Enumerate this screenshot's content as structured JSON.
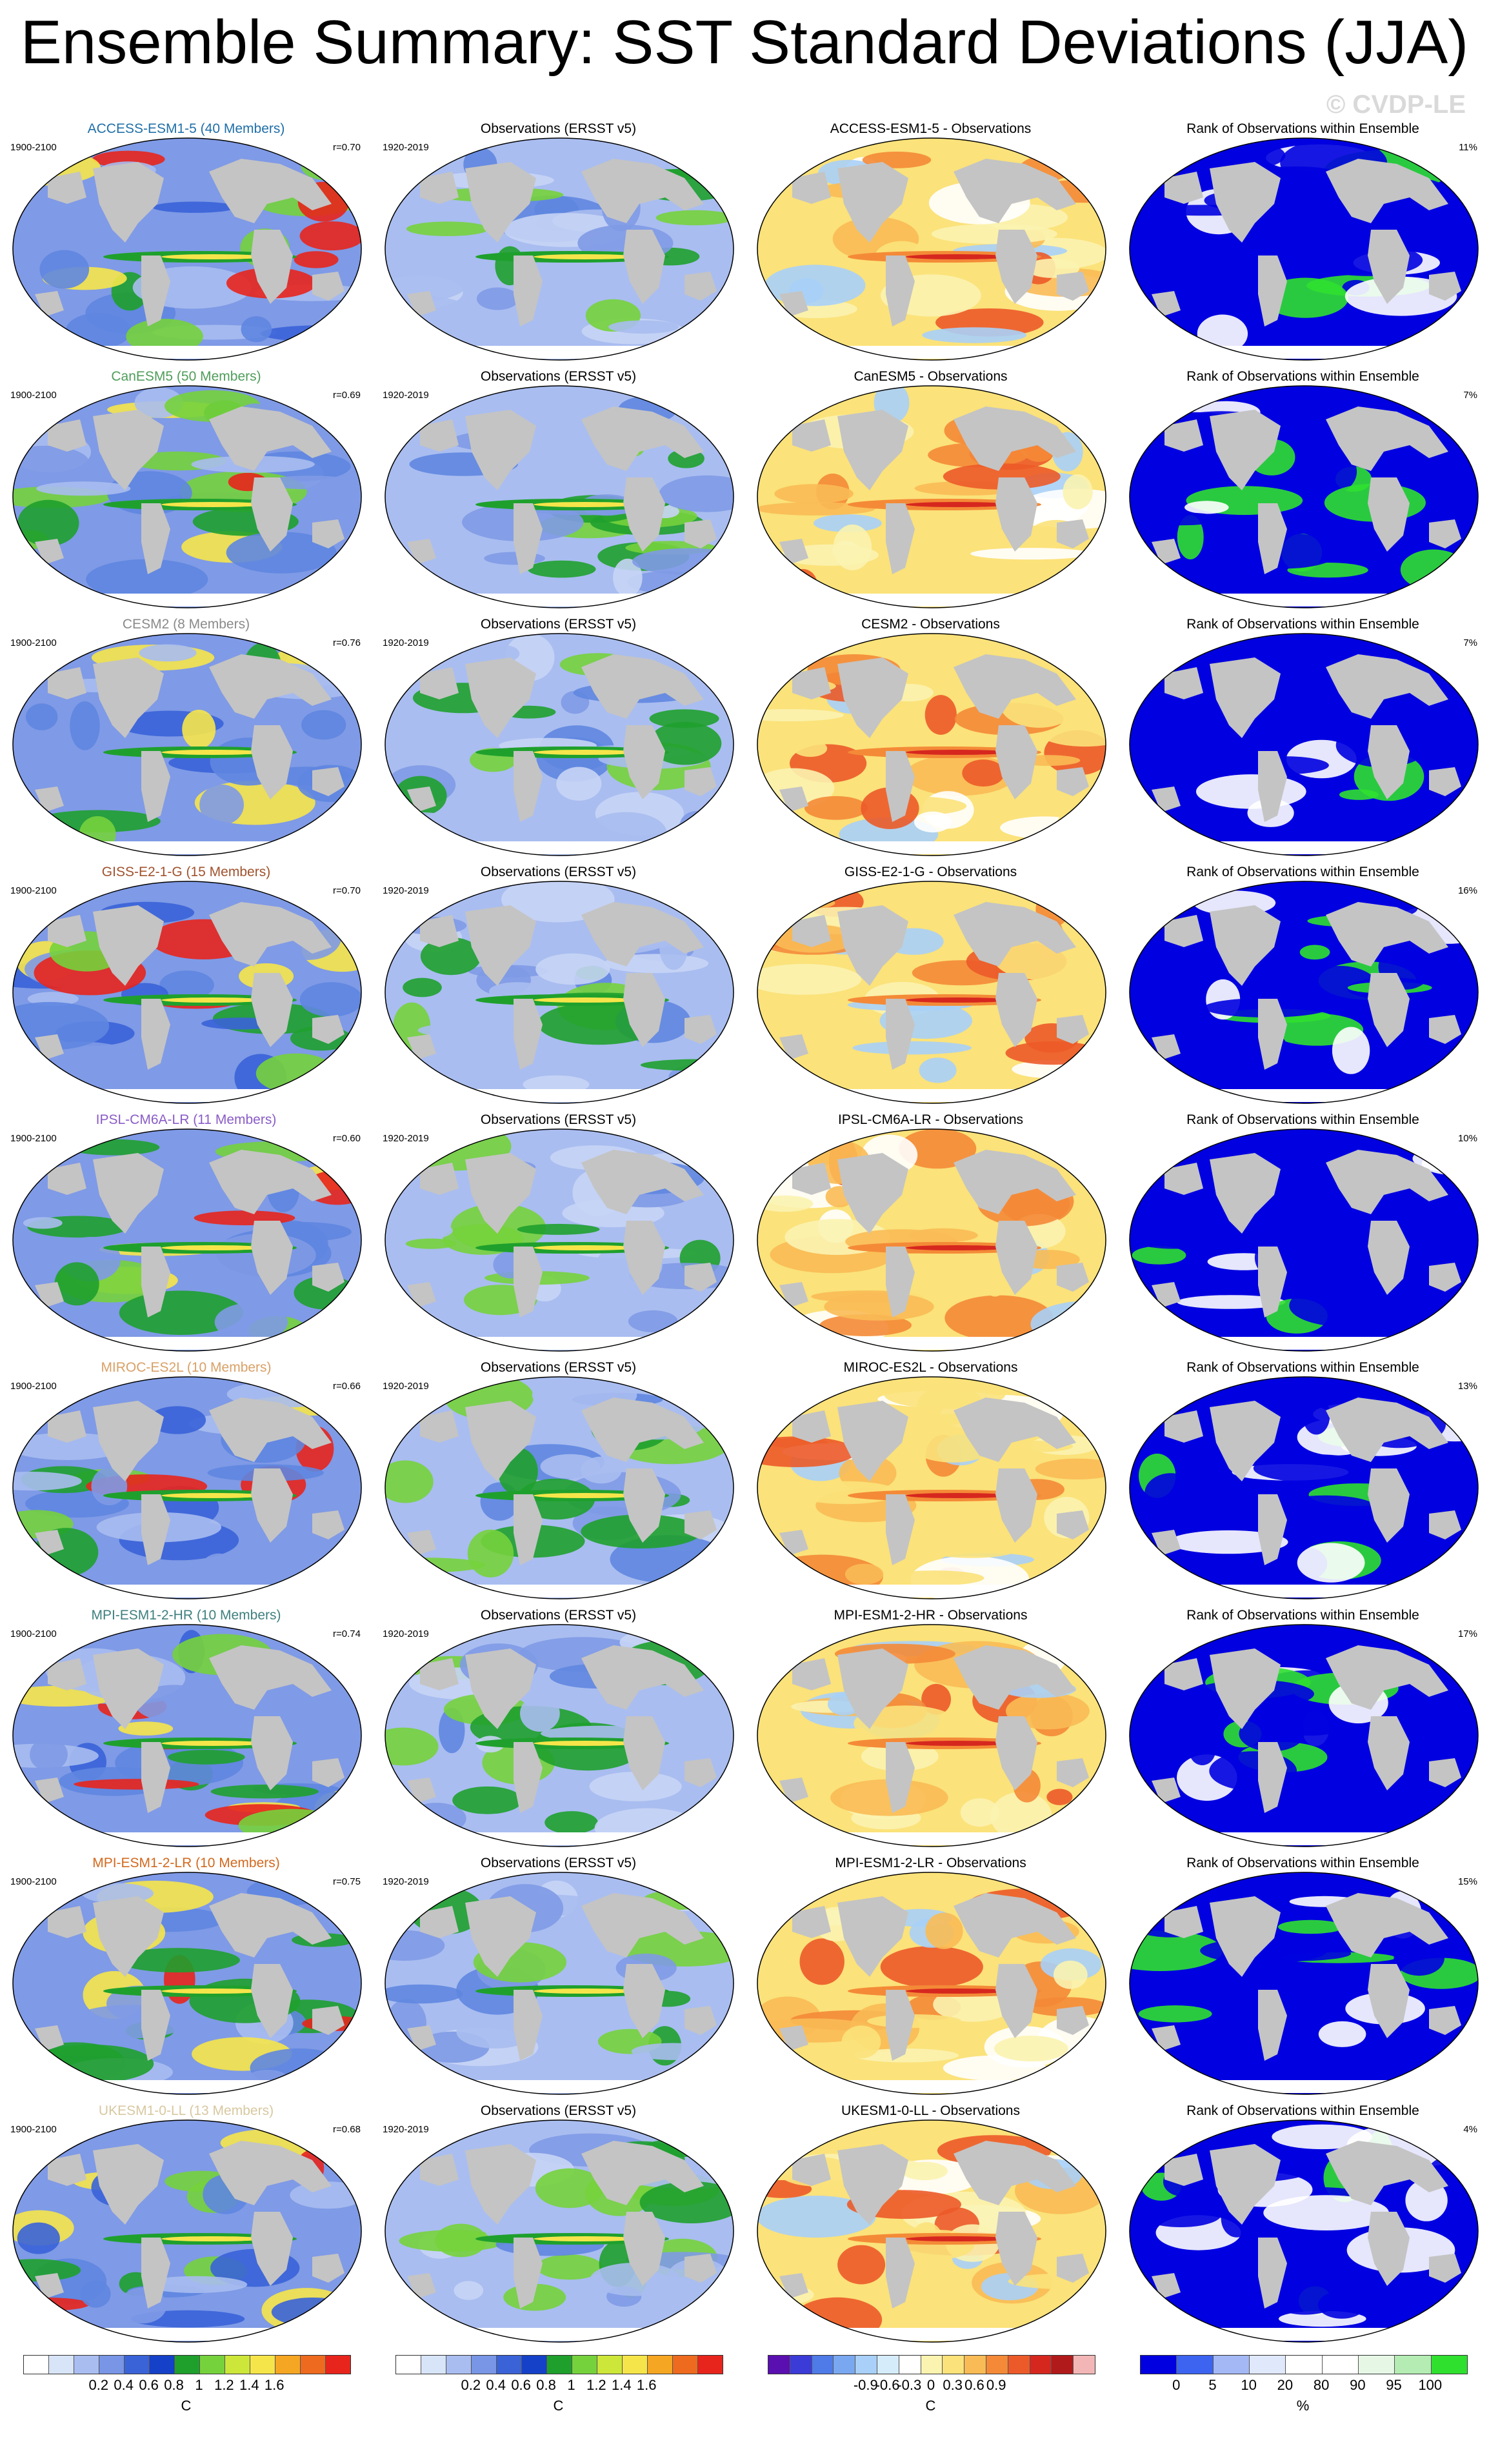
{
  "title": "Ensemble Summary: SST Standard Deviations (JJA)",
  "watermark": "© CVDP-LE",
  "rows": [
    {
      "model": "ACCESS-ESM1-5 (40 Members)",
      "model_color": "#1f6fa8",
      "years": "1900-2100",
      "r": "r=0.70",
      "obs_title": "Observations (ERSST v5)",
      "obs_years": "1920-2019",
      "diff_title": "ACCESS-ESM1-5 - Observations",
      "rank_title": "Rank of Observations within Ensemble",
      "rank_pct": "11%"
    },
    {
      "model": "CanESM5 (50 Members)",
      "model_color": "#4f9d5a",
      "years": "1900-2100",
      "r": "r=0.69",
      "obs_title": "Observations (ERSST v5)",
      "obs_years": "1920-2019",
      "diff_title": "CanESM5 - Observations",
      "rank_title": "Rank of Observations within Ensemble",
      "rank_pct": "7%"
    },
    {
      "model": "CESM2 (8 Members)",
      "model_color": "#8a8a8a",
      "years": "1900-2100",
      "r": "r=0.76",
      "obs_title": "Observations (ERSST v5)",
      "obs_years": "1920-2019",
      "diff_title": "CESM2 - Observations",
      "rank_title": "Rank of Observations within Ensemble",
      "rank_pct": "7%"
    },
    {
      "model": "GISS-E2-1-G (15 Members)",
      "model_color": "#a0522d",
      "years": "1900-2100",
      "r": "r=0.70",
      "obs_title": "Observations (ERSST v5)",
      "obs_years": "1920-2019",
      "diff_title": "GISS-E2-1-G - Observations",
      "rank_title": "Rank of Observations within Ensemble",
      "rank_pct": "16%"
    },
    {
      "model": "IPSL-CM6A-LR (11 Members)",
      "model_color": "#8a5cc7",
      "years": "1900-2100",
      "r": "r=0.60",
      "obs_title": "Observations (ERSST v5)",
      "obs_years": "1920-2019",
      "diff_title": "IPSL-CM6A-LR - Observations",
      "rank_title": "Rank of Observations within Ensemble",
      "rank_pct": "10%"
    },
    {
      "model": "MIROC-ES2L (10 Members)",
      "model_color": "#d9a066",
      "years": "1900-2100",
      "r": "r=0.66",
      "obs_title": "Observations (ERSST v5)",
      "obs_years": "1920-2019",
      "diff_title": "MIROC-ES2L - Observations",
      "rank_title": "Rank of Observations within Ensemble",
      "rank_pct": "13%"
    },
    {
      "model": "MPI-ESM1-2-HR (10 Members)",
      "model_color": "#3f7f7f",
      "years": "1900-2100",
      "r": "r=0.74",
      "obs_title": "Observations (ERSST v5)",
      "obs_years": "1920-2019",
      "diff_title": "MPI-ESM1-2-HR - Observations",
      "rank_title": "Rank of Observations within Ensemble",
      "rank_pct": "17%"
    },
    {
      "model": "MPI-ESM1-2-LR (10 Members)",
      "model_color": "#d2691e",
      "years": "1900-2100",
      "r": "r=0.75",
      "obs_title": "Observations (ERSST v5)",
      "obs_years": "1920-2019",
      "diff_title": "MPI-ESM1-2-LR - Observations",
      "rank_title": "Rank of Observations within Ensemble",
      "rank_pct": "15%"
    },
    {
      "model": "UKESM1-0-LL (13 Members)",
      "model_color": "#d8c8a0",
      "years": "1900-2100",
      "r": "r=0.68",
      "obs_title": "Observations (ERSST v5)",
      "obs_years": "1920-2019",
      "diff_title": "UKESM1-0-LL - Observations",
      "rank_title": "Rank of Observations within Ensemble",
      "rank_pct": "4%"
    }
  ],
  "colorbars": [
    {
      "unit": "C",
      "ticks": [
        "0.2",
        "0.4",
        "0.6",
        "0.8",
        "1",
        "1.2",
        "1.4",
        "1.6"
      ],
      "colors": [
        "#ffffff",
        "#d8e4f8",
        "#a9bdf0",
        "#7895e6",
        "#3a63d8",
        "#1540c8",
        "#1fa02d",
        "#76d23c",
        "#cde63a",
        "#f6e54a",
        "#f5a623",
        "#ee6a1f",
        "#e8251c"
      ]
    },
    {
      "unit": "C",
      "ticks": [
        "0.2",
        "0.4",
        "0.6",
        "0.8",
        "1",
        "1.2",
        "1.4",
        "1.6"
      ],
      "colors": [
        "#ffffff",
        "#d8e4f8",
        "#a9bdf0",
        "#7895e6",
        "#3a63d8",
        "#1540c8",
        "#1fa02d",
        "#76d23c",
        "#cde63a",
        "#f6e54a",
        "#f5a623",
        "#ee6a1f",
        "#e8251c"
      ]
    },
    {
      "unit": "C",
      "ticks": [
        "-0.9",
        "-0.6",
        "-0.3",
        "0",
        "0.3",
        "0.6",
        "0.9"
      ],
      "colors": [
        "#5a0fb0",
        "#3b3bd8",
        "#4f7be8",
        "#7aa8f0",
        "#a8d0f8",
        "#d5ecfb",
        "#ffffff",
        "#fbf3b0",
        "#fbe27a",
        "#f9bb55",
        "#f48a37",
        "#ec5a29",
        "#d6271f",
        "#b11a1a",
        "#f2b6b6"
      ]
    },
    {
      "unit": "%",
      "ticks": [
        "0",
        "5",
        "10",
        "20",
        "80",
        "90",
        "95",
        "100"
      ],
      "colors": [
        "#0000e0",
        "#3c64f0",
        "#a3b8f5",
        "#e0e8fb",
        "#ffffff",
        "#ffffff",
        "#e6f7e6",
        "#b4ecb4",
        "#2fe02f"
      ]
    }
  ]
}
